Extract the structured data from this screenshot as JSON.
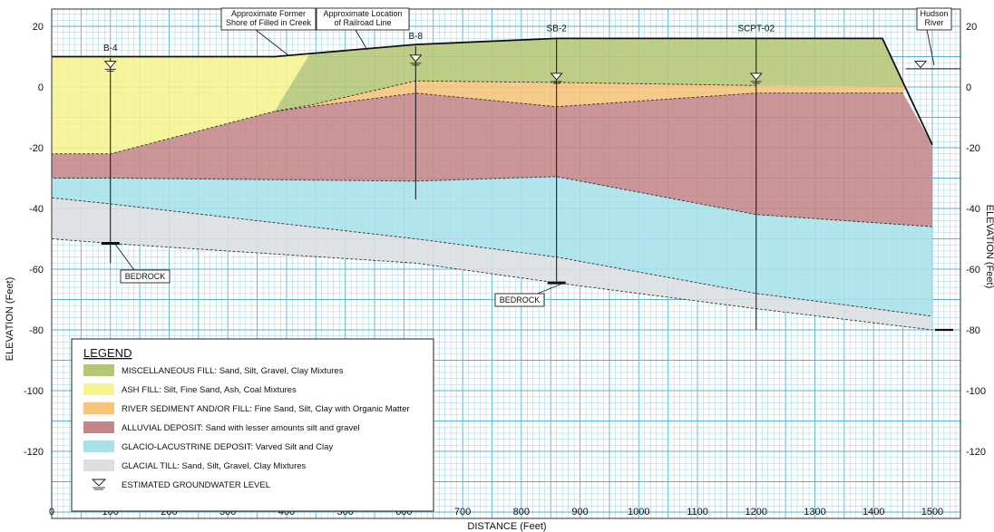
{
  "axes": {
    "y_left_title": "ELEVATION (Feet)",
    "y_right_title": "ELEVATION (Feet)",
    "x_title": "DISTANCE (Feet)",
    "x_ticks": [
      "0",
      "100",
      "200",
      "300",
      "400",
      "500",
      "600",
      "700",
      "800",
      "900",
      "1000",
      "1100",
      "1200",
      "1300",
      "1400",
      "1500"
    ],
    "y_ticks": [
      "20",
      "0",
      "-20",
      "-40",
      "-60",
      "-80",
      "-100",
      "-120"
    ],
    "y_right_ticks": [
      "20",
      "0",
      "-20",
      "-40",
      "-60",
      "-80",
      "-100",
      "-120"
    ]
  },
  "borings": [
    {
      "name": "B-4",
      "x": 100,
      "top": 9.5,
      "bottom": -58,
      "water": 7
    },
    {
      "name": "B-8",
      "x": 620,
      "top": 13.5,
      "bottom": -37,
      "water": 9
    },
    {
      "name": "SB-2",
      "x": 860,
      "top": 16,
      "bottom": -64,
      "water": 3
    },
    {
      "name": "SCPT-02",
      "x": 1200,
      "top": 16,
      "bottom": -80,
      "water": 3
    }
  ],
  "callouts": {
    "former_shore": "Approximate Former\nShore of Filled in Creek",
    "railroad": "Approximate Location\nof Railroad Line",
    "hudson": "Hudson\nRiver",
    "bedrock_1": "BEDROCK",
    "bedrock_2": "BEDROCK"
  },
  "legend": {
    "title": "LEGEND",
    "items": [
      {
        "label": "MISCELLANEOUS FILL: Sand, Silt, Gravel, Clay Mixtures",
        "color": "#b5c776"
      },
      {
        "label": "ASH FILL: Silt, Fine Sand, Ash, Coal Mixtures",
        "color": "#f6f490"
      },
      {
        "label": "RIVER SEDIMENT AND/OR FILL: Fine Sand, Silt, Clay with Organic Matter",
        "color": "#f7c47a"
      },
      {
        "label": "ALLUVIAL DEPOSIT: Sand with lesser amounts silt and gravel",
        "color": "#c5868a"
      },
      {
        "label": "GLACIO-LACUSTRINE DEPOSIT: Varved Silt and Clay",
        "color": "#a9e1ea"
      },
      {
        "label": "GLACIAL TILL: Sand, Silt, Gravel, Clay Mixtures",
        "color": "#dcdfe1"
      },
      {
        "label": "ESTIMATED GROUNDWATER LEVEL",
        "color": ""
      }
    ]
  },
  "layers": [
    {
      "id": "glacial-till",
      "color": "#dcdfe1",
      "top": [
        [
          0,
          -36.5
        ],
        [
          100,
          -38.5
        ],
        [
          620,
          -50
        ],
        [
          860,
          -56
        ],
        [
          1200,
          -68
        ],
        [
          1500,
          -75.5
        ]
      ],
      "bottom": [
        [
          0,
          -50
        ],
        [
          100,
          -51.5
        ],
        [
          620,
          -58
        ],
        [
          860,
          -64.5
        ],
        [
          1200,
          -73
        ],
        [
          1500,
          -80
        ]
      ]
    },
    {
      "id": "glacio-lacustrine",
      "color": "#a9e1ea",
      "top": [
        [
          0,
          -30
        ],
        [
          100,
          -30
        ],
        [
          620,
          -31
        ],
        [
          860,
          -29.5
        ],
        [
          1200,
          -42
        ],
        [
          1500,
          -46
        ]
      ],
      "bottom": [
        [
          0,
          -36.5
        ],
        [
          100,
          -38.5
        ],
        [
          620,
          -50
        ],
        [
          860,
          -56
        ],
        [
          1200,
          -68
        ],
        [
          1500,
          -75.5
        ]
      ]
    },
    {
      "id": "alluvial",
      "color": "#c5868a",
      "top": [
        [
          0,
          -22
        ],
        [
          100,
          -22
        ],
        [
          380,
          -8
        ],
        [
          620,
          -2
        ],
        [
          860,
          -6.5
        ],
        [
          1200,
          -2
        ],
        [
          1450,
          -2
        ],
        [
          1500,
          -19
        ]
      ],
      "bottom": [
        [
          1500,
          -46
        ],
        [
          1200,
          -42
        ],
        [
          860,
          -29.5
        ],
        [
          620,
          -31
        ],
        [
          100,
          -30
        ],
        [
          0,
          -30
        ]
      ]
    },
    {
      "id": "river-sediment",
      "color": "#f7c47a",
      "top": [
        [
          380,
          -8
        ],
        [
          440,
          -6
        ],
        [
          620,
          2
        ],
        [
          860,
          1.5
        ],
        [
          1200,
          0.5
        ],
        [
          1455,
          0
        ]
      ],
      "bottom": [
        [
          1450,
          -2
        ],
        [
          1200,
          -2
        ],
        [
          860,
          -6.5
        ],
        [
          620,
          -2
        ],
        [
          380,
          -8
        ]
      ]
    },
    {
      "id": "ash-fill",
      "color": "#f6f490",
      "top": [
        [
          0,
          10
        ],
        [
          380,
          10
        ],
        [
          440,
          11
        ]
      ],
      "bottom": [
        [
          380,
          -8
        ],
        [
          100,
          -22
        ],
        [
          0,
          -22
        ]
      ]
    },
    {
      "id": "misc-fill",
      "color": "#b5c776",
      "top": [
        [
          440,
          11
        ],
        [
          620,
          14
        ],
        [
          860,
          16
        ],
        [
          1415,
          16
        ],
        [
          1455,
          0
        ]
      ],
      "bottom": [
        [
          1200,
          0.5
        ],
        [
          860,
          1.5
        ],
        [
          620,
          2
        ],
        [
          440,
          -6
        ],
        [
          380,
          -8
        ]
      ]
    }
  ],
  "surface": [
    [
      0,
      10
    ],
    [
      380,
      10
    ],
    [
      440,
      11
    ],
    [
      620,
      14
    ],
    [
      860,
      16
    ],
    [
      1415,
      16
    ],
    [
      1500,
      -19
    ]
  ]
}
